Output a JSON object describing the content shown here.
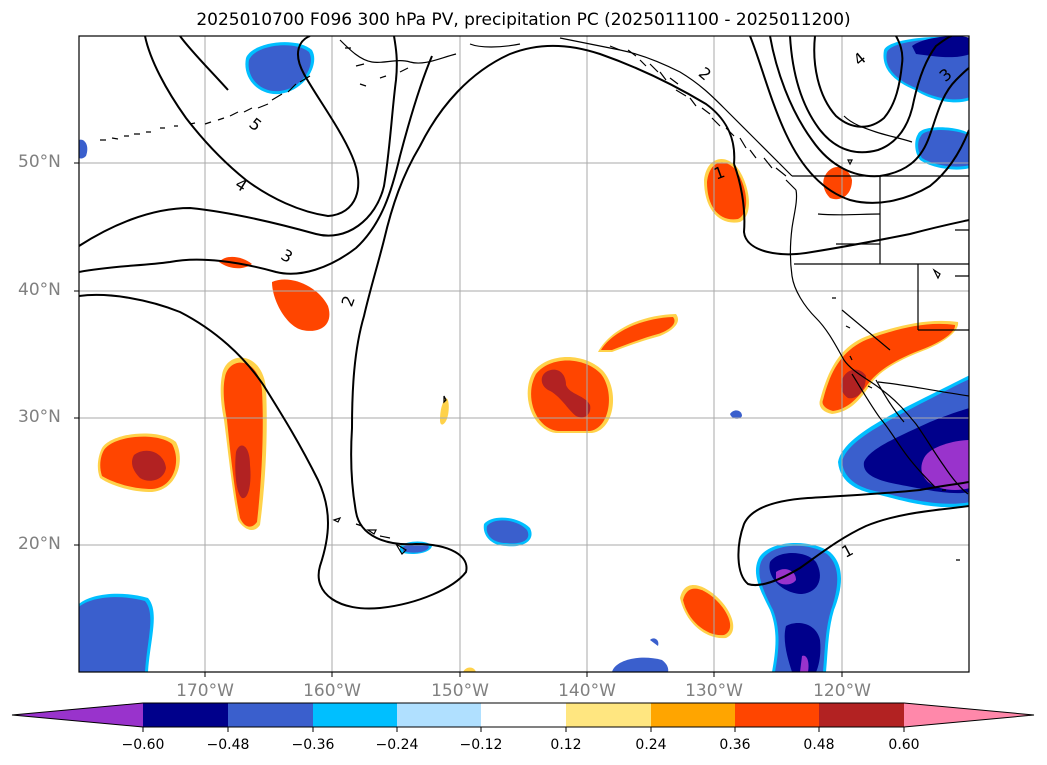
{
  "title": "2025010700 F096 300 hPa PV, precipitation PC (2025011100 - 2025011200)",
  "lat_labels": [
    "50°N",
    "40°N",
    "30°N",
    "20°N"
  ],
  "lon_labels": [
    "170°W",
    "160°W",
    "150°W",
    "140°W",
    "130°W",
    "120°W"
  ],
  "colorbar": {
    "labels": [
      "−0.60",
      "−0.48",
      "−0.36",
      "−0.24",
      "−0.12",
      "0.12",
      "0.24",
      "0.36",
      "0.48",
      "0.60"
    ],
    "colors": [
      "#9933cc",
      "#00008b",
      "#3a5fcd",
      "#00bfff",
      "#b0e0ff",
      "#ffffff",
      "#ffe680",
      "#ffa500",
      "#ff4500",
      "#b22222",
      "#ff88aa"
    ]
  },
  "contour_labels": [
    "5",
    "4",
    "3",
    "2",
    "2",
    "4",
    "3",
    "1",
    "1"
  ],
  "map_colors": {
    "pos_outer": "#ffd24a",
    "pos_mid": "#ff4500",
    "pos_high": "#b22222",
    "neg_outer": "#00bfff",
    "neg_mid": "#3a5fcd",
    "neg_high": "#00008b",
    "neg_max": "#9933cc"
  }
}
